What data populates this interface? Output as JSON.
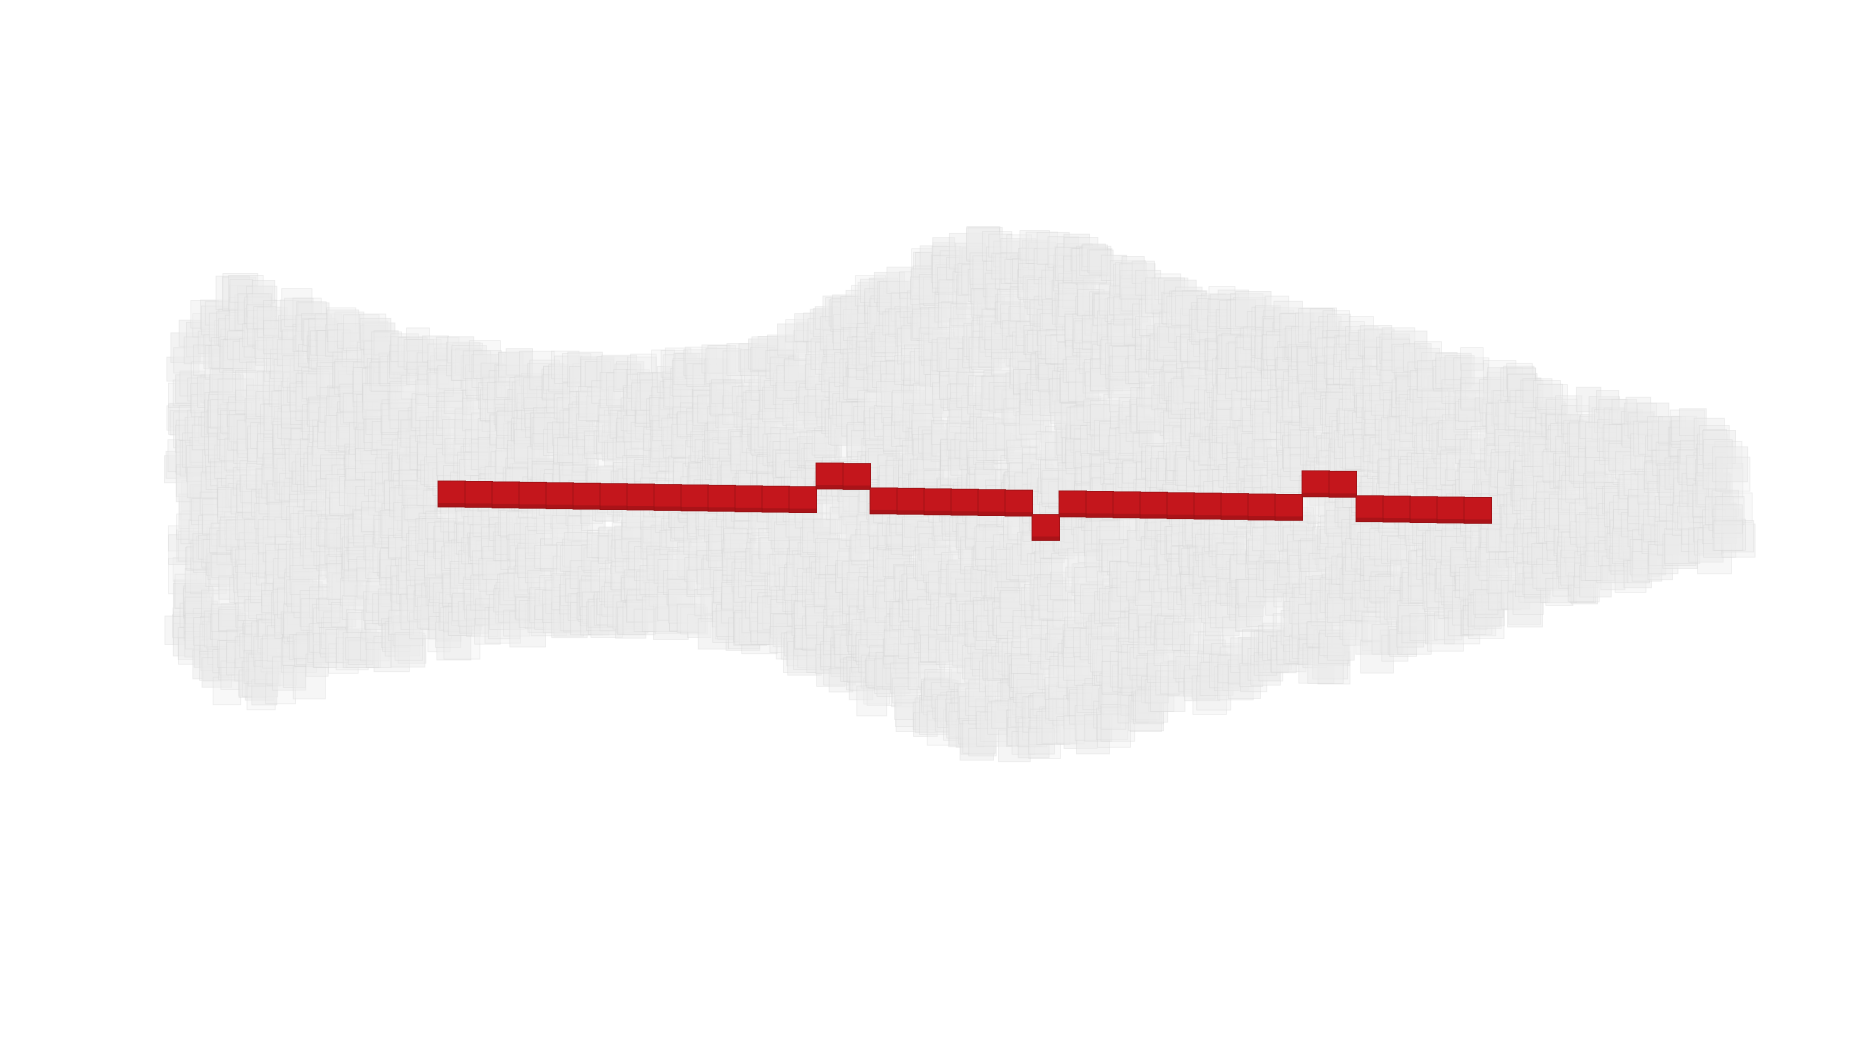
{
  "scene": {
    "background": "#ffffff",
    "cloud_color": "#ebebeb",
    "cloud_edge_color": "#d2d2d2",
    "path_color": "#c4161c",
    "path_dark_color": "#7a0d10",
    "path_edge_color": "#9c1216"
  },
  "path": {
    "segments": [
      {
        "cells": 14,
        "level": 0
      },
      {
        "cells": 2,
        "level": 1
      },
      {
        "cells": 6,
        "level": 0
      },
      {
        "cells": 1,
        "level": -1
      },
      {
        "cells": 9,
        "level": 0
      },
      {
        "cells": 2,
        "level": 1
      },
      {
        "cells": 5,
        "level": 0
      }
    ]
  }
}
